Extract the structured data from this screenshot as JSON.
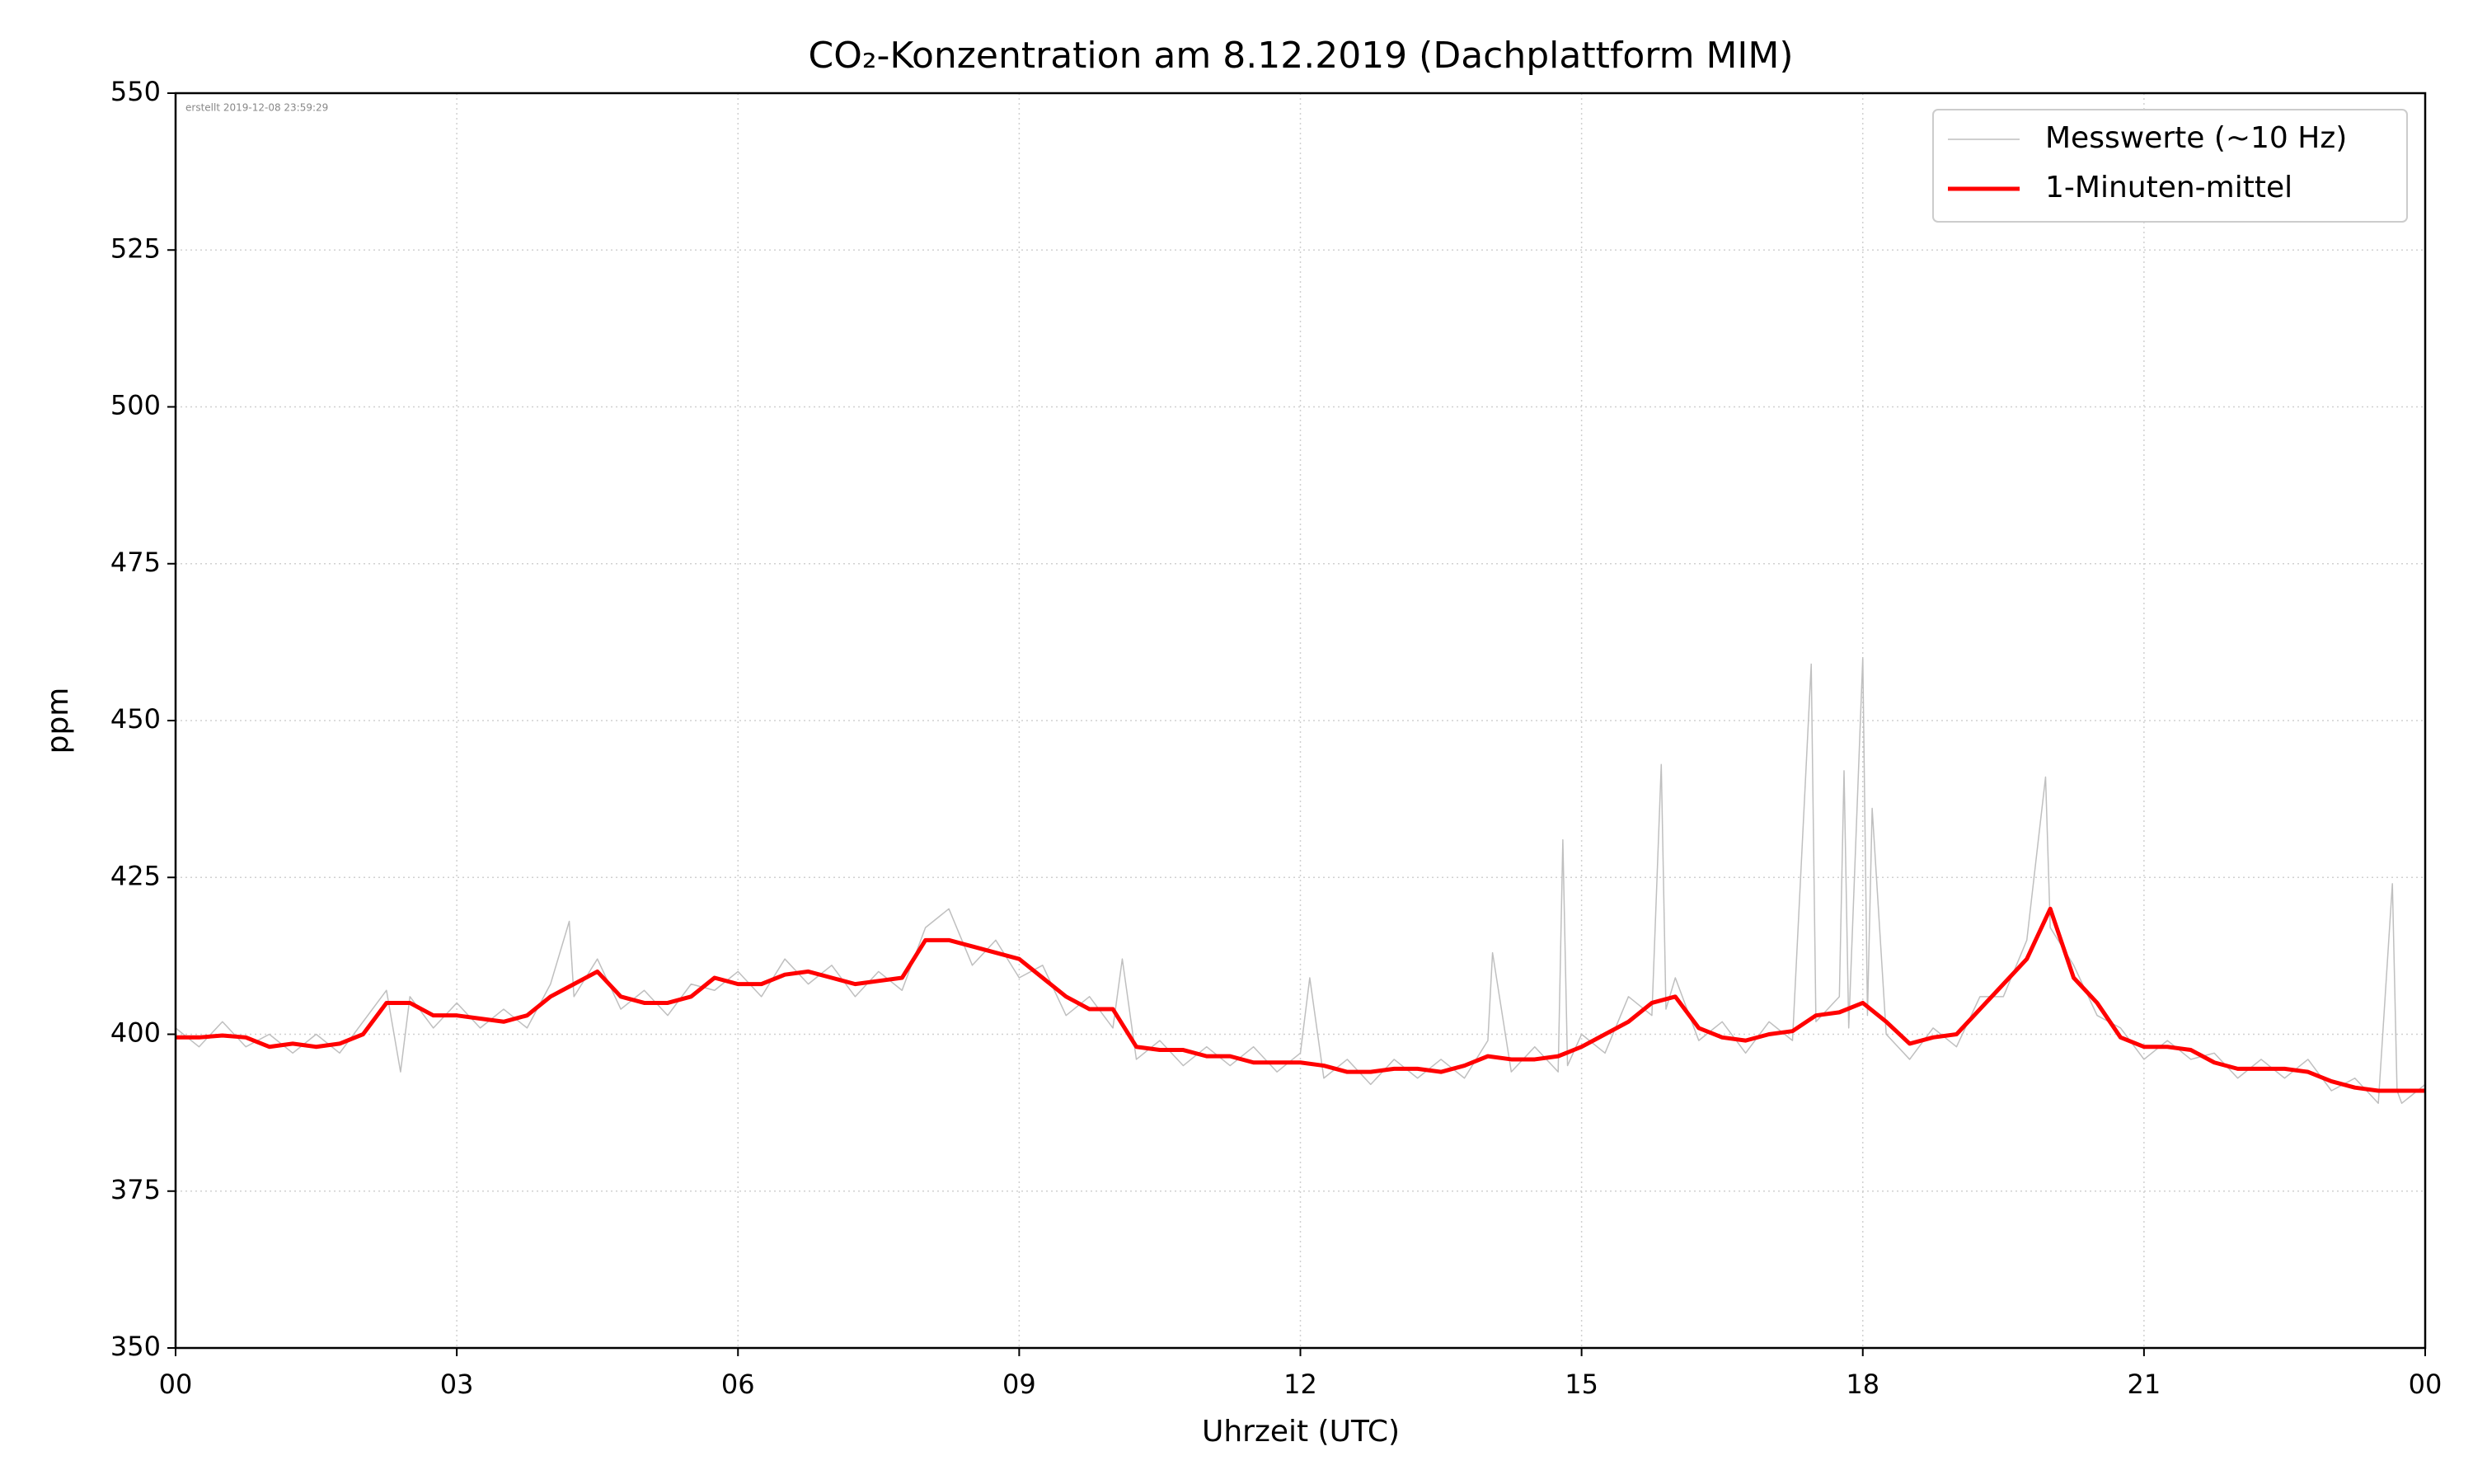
{
  "chart_data": {
    "type": "line",
    "title": "CO₂-Konzentration am 8.12.2019 (Dachplattform MIM)",
    "annotation": "erstellt 2019-12-08 23:59:29",
    "x_label": "Uhrzeit (UTC)",
    "y_label": "ppm",
    "xlim": [
      0,
      24
    ],
    "ylim": [
      350,
      550
    ],
    "xticks": [
      {
        "value": 0,
        "label": "00"
      },
      {
        "value": 3,
        "label": "03"
      },
      {
        "value": 6,
        "label": "06"
      },
      {
        "value": 9,
        "label": "09"
      },
      12,
      15,
      18,
      21,
      {
        "value": 24,
        "label": "00"
      }
    ],
    "yticks": [
      350,
      375,
      400,
      425,
      450,
      475,
      500,
      525,
      550
    ],
    "grid": true,
    "legend": "upper right",
    "series": [
      {
        "name": "Messwerte (~10 Hz)",
        "color": "#bfbfbf",
        "width": 1.5,
        "x": [
          0,
          0.25,
          0.5,
          0.75,
          1,
          1.25,
          1.5,
          1.75,
          2,
          2.25,
          2.4,
          2.5,
          2.75,
          3,
          3.25,
          3.5,
          3.75,
          4,
          4.2,
          4.25,
          4.5,
          4.75,
          5,
          5.25,
          5.5,
          5.75,
          6,
          6.25,
          6.5,
          6.75,
          7,
          7.25,
          7.5,
          7.75,
          8,
          8.25,
          8.5,
          8.75,
          9,
          9.25,
          9.5,
          9.75,
          10,
          10.1,
          10.25,
          10.5,
          10.75,
          11,
          11.25,
          11.5,
          11.75,
          12,
          12.1,
          12.25,
          12.5,
          12.75,
          13,
          13.25,
          13.5,
          13.75,
          14,
          14.05,
          14.25,
          14.5,
          14.75,
          14.8,
          14.85,
          15,
          15.25,
          15.5,
          15.75,
          15.85,
          15.9,
          16,
          16.25,
          16.5,
          16.75,
          17,
          17.25,
          17.45,
          17.5,
          17.75,
          17.8,
          17.85,
          18,
          18.05,
          18.1,
          18.25,
          18.5,
          18.75,
          19,
          19.25,
          19.5,
          19.75,
          19.95,
          20,
          20.25,
          20.5,
          20.75,
          21,
          21.25,
          21.5,
          21.75,
          22,
          22.25,
          22.5,
          22.75,
          23,
          23.25,
          23.5,
          23.65,
          23.7,
          23.75,
          24
        ],
        "values": [
          401,
          398,
          402,
          398,
          400,
          397,
          400,
          397,
          402,
          407,
          394,
          406,
          401,
          405,
          401,
          404,
          401,
          408,
          418,
          406,
          412,
          404,
          407,
          403,
          408,
          407,
          410,
          406,
          412,
          408,
          411,
          406,
          410,
          407,
          417,
          420,
          411,
          415,
          409,
          411,
          403,
          406,
          401,
          412,
          396,
          399,
          395,
          398,
          395,
          398,
          394,
          397,
          409,
          393,
          396,
          392,
          396,
          393,
          396,
          393,
          399,
          413,
          394,
          398,
          394,
          431,
          395,
          400,
          397,
          406,
          403,
          443,
          404,
          409,
          399,
          402,
          397,
          402,
          399,
          459,
          402,
          406,
          442,
          401,
          460,
          403,
          436,
          400,
          396,
          401,
          398,
          406,
          406,
          415,
          441,
          417,
          411,
          403,
          401,
          396,
          399,
          396,
          397,
          393,
          396,
          393,
          396,
          391,
          393,
          389,
          424,
          391,
          389,
          392
        ]
      },
      {
        "name": "1-Minuten-mittel",
        "color": "#ff0000",
        "width": 5,
        "x": [
          0,
          0.25,
          0.5,
          0.75,
          1,
          1.25,
          1.5,
          1.75,
          2,
          2.25,
          2.5,
          2.75,
          3,
          3.25,
          3.5,
          3.75,
          4,
          4.25,
          4.5,
          4.75,
          5,
          5.25,
          5.5,
          5.75,
          6,
          6.25,
          6.5,
          6.75,
          7,
          7.25,
          7.5,
          7.75,
          8,
          8.25,
          8.5,
          8.75,
          9,
          9.25,
          9.5,
          9.75,
          10,
          10.25,
          10.5,
          10.75,
          11,
          11.25,
          11.5,
          11.75,
          12,
          12.25,
          12.5,
          12.75,
          13,
          13.25,
          13.5,
          13.75,
          14,
          14.25,
          14.5,
          14.75,
          15,
          15.25,
          15.5,
          15.75,
          16,
          16.25,
          16.5,
          16.75,
          17,
          17.25,
          17.5,
          17.75,
          18,
          18.25,
          18.5,
          18.75,
          19,
          19.25,
          19.5,
          19.75,
          20,
          20.25,
          20.5,
          20.75,
          21,
          21.25,
          21.5,
          21.75,
          22,
          22.25,
          22.5,
          22.75,
          23,
          23.25,
          23.5,
          23.75,
          24
        ],
        "values": [
          399.5,
          399.5,
          399.8,
          399.5,
          398,
          398.5,
          398,
          398.5,
          400,
          405,
          405,
          403,
          403,
          402.5,
          402,
          403,
          406,
          408,
          410,
          406,
          405,
          405,
          406,
          409,
          408,
          408,
          409.5,
          410,
          409,
          408,
          408.5,
          409,
          415,
          415,
          414,
          413,
          412,
          409,
          406,
          404,
          404,
          398,
          397.5,
          397.5,
          396.5,
          396.5,
          395.5,
          395.5,
          395.5,
          395,
          394,
          394,
          394.5,
          394.5,
          394,
          395,
          396.5,
          396,
          396,
          396.5,
          398,
          400,
          402,
          405,
          406,
          401,
          399.5,
          399,
          400,
          400.5,
          403,
          403.5,
          405,
          402,
          398.5,
          399.5,
          400,
          404,
          408,
          412,
          420,
          409,
          405,
          399.5,
          398,
          398,
          397.5,
          395.5,
          394.5,
          394.5,
          394.5,
          394,
          392.5,
          391.5,
          391,
          391,
          391
        ]
      }
    ]
  }
}
